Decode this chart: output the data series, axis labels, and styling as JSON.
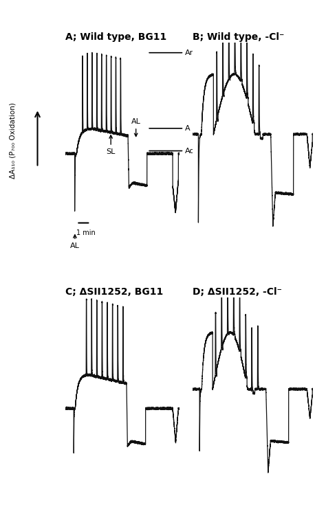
{
  "title_A": "A; Wild type, BG11",
  "title_B": "B; Wild type, -Cl⁻",
  "title_C": "C; ΔSII1252, BG11",
  "title_D": "D; ΔSII1252, -Cl⁻",
  "ylabel": "ΔA₁₁₀ (P₇₀₀ Oxidation)",
  "background_color": "#ffffff",
  "line_color": "#111111",
  "title_fontsize": 10,
  "label_fontsize": 8,
  "annotation_fontsize": 8
}
